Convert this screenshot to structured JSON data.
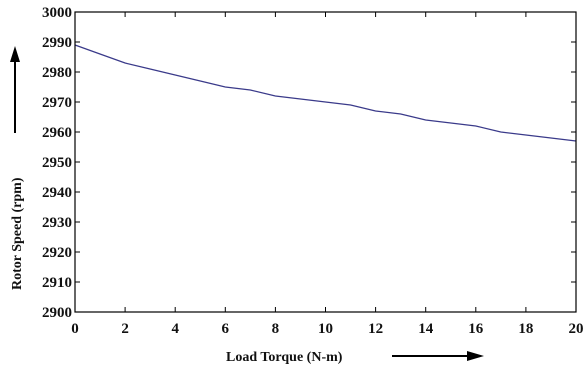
{
  "chart_data": {
    "type": "line",
    "title": "",
    "xlabel": "Load Torque (N-m)",
    "ylabel": "Rotor Speed (rpm)",
    "xlim": [
      0,
      20
    ],
    "ylim": [
      2900,
      3000
    ],
    "x_ticks": [
      "0",
      "2",
      "4",
      "6",
      "8",
      "10",
      "12",
      "14",
      "16",
      "18",
      "20"
    ],
    "y_ticks": [
      "2900",
      "2910",
      "2920",
      "2930",
      "2940",
      "2950",
      "2960",
      "2970",
      "2980",
      "2990",
      "3000"
    ],
    "grid": false,
    "legend": "none",
    "axis_arrows": true,
    "series": [
      {
        "color": "#3a3a8a",
        "x": [
          0,
          1,
          2,
          3,
          4,
          5,
          6,
          7,
          8,
          9,
          10,
          11,
          12,
          13,
          14,
          15,
          16,
          17,
          18,
          19,
          20
        ],
        "y": [
          2989,
          2986,
          2983,
          2981,
          2979,
          2977,
          2975,
          2974,
          2972,
          2971,
          2970,
          2969,
          2967,
          2966,
          2964,
          2963,
          2962,
          2960,
          2959,
          2958,
          2957
        ]
      }
    ]
  }
}
